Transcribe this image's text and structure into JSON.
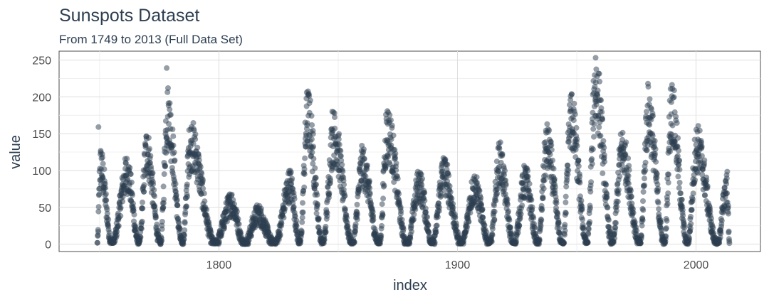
{
  "chart_data": {
    "type": "scatter",
    "title": "Sunspots Dataset",
    "subtitle": "From 1749 to 2013 (Full Data Set)",
    "xlabel": "index",
    "ylabel": "value",
    "xlim": [
      1733,
      2027
    ],
    "ylim": [
      -10,
      262
    ],
    "x_ticks": [
      1800,
      1900,
      2000
    ],
    "y_ticks": [
      0,
      50,
      100,
      150,
      200,
      250
    ],
    "grid": true,
    "point_color": "#2c3e50",
    "point_alpha": 0.5,
    "cycle_model": {
      "description_x": "cycle start years",
      "cycle_starts": [
        1749,
        1755.2,
        1766.5,
        1775.5,
        1784.7,
        1798.3,
        1810.6,
        1823.3,
        1833.9,
        1843.5,
        1856.0,
        1867.2,
        1878.9,
        1889.6,
        1901.7,
        1913.6,
        1923.6,
        1933.8,
        1944.2,
        1954.3,
        1964.9,
        1976.5,
        1986.8,
        1996.4,
        2008.9,
        2014
      ],
      "cycle_peaks": [
        1750.3,
        1761.5,
        1769.7,
        1778.4,
        1788.1,
        1805.2,
        1816.4,
        1829.9,
        1837.2,
        1848.1,
        1860.1,
        1870.6,
        1883.9,
        1894.1,
        1907.0,
        1917.6,
        1928.4,
        1937.4,
        1947.5,
        1957.9,
        1968.9,
        1979.9,
        1989.6,
        2000.3,
        2013.0
      ],
      "peak_values": [
        105,
        95,
        125,
        175,
        135,
        55,
        40,
        80,
        170,
        145,
        105,
        150,
        80,
        95,
        75,
        110,
        85,
        130,
        170,
        210,
        125,
        175,
        180,
        130,
        80
      ],
      "peak_max_points": [
        {
          "x": 1749.5,
          "y": 159
        },
        {
          "x": 1778.1,
          "y": 239
        },
        {
          "x": 1836.8,
          "y": 206
        },
        {
          "x": 1847.5,
          "y": 180
        },
        {
          "x": 1870.0,
          "y": 176
        },
        {
          "x": 1957.9,
          "y": 253
        },
        {
          "x": 1989.9,
          "y": 201
        }
      ]
    }
  }
}
